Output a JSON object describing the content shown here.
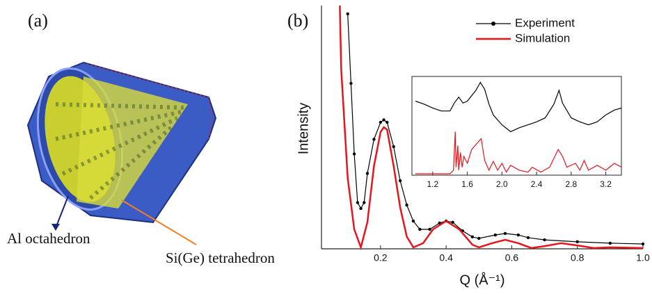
{
  "panel_a": {
    "label": "(a)",
    "annotations": [
      "Al octahedron",
      "Si(Ge) tetrahedron"
    ]
  },
  "chart_data": [
    {
      "type": "line",
      "panel_label": "(b)",
      "xlabel": "Q (Å⁻¹)",
      "ylabel": "Intensity",
      "xlim": [
        0.02,
        1.0
      ],
      "ylim": [
        0,
        100
      ],
      "xticks": [
        0.2,
        0.4,
        0.6,
        0.8,
        {
          "value": 1.0,
          "label": "1.0"
        }
      ],
      "legend": "upper right",
      "series": [
        {
          "name": "Experiment",
          "color": "#000000",
          "marker": "o",
          "x": [
            0.1,
            0.11,
            0.12,
            0.13,
            0.14,
            0.15,
            0.16,
            0.18,
            0.2,
            0.21,
            0.22,
            0.24,
            0.26,
            0.28,
            0.3,
            0.32,
            0.35,
            0.38,
            0.4,
            0.42,
            0.45,
            0.48,
            0.5,
            0.55,
            0.58,
            0.62,
            0.65,
            0.7,
            0.8,
            0.9,
            1.0
          ],
          "values": [
            96.6,
            68,
            39,
            19,
            16.6,
            19,
            31,
            45,
            52,
            53,
            52,
            42,
            28,
            18,
            11.4,
            8,
            8,
            10.6,
            11.4,
            10.9,
            7.4,
            4.9,
            4.3,
            5.7,
            6.3,
            5.7,
            4.6,
            3.7,
            2.9,
            2.3,
            2
          ]
        },
        {
          "name": "Simulation",
          "color": "#e8141b",
          "x": [
            0.076,
            0.08,
            0.1,
            0.12,
            0.14,
            0.16,
            0.18,
            0.2,
            0.21,
            0.22,
            0.24,
            0.26,
            0.28,
            0.3,
            0.33,
            0.36,
            0.4,
            0.44,
            0.48,
            0.5,
            0.54,
            0.58,
            0.62,
            0.66,
            0.7,
            0.75,
            0.8,
            0.85,
            0.9,
            1.0
          ],
          "values": [
            100,
            74,
            29,
            8,
            0.6,
            11,
            34,
            48,
            50,
            49,
            34,
            17,
            5,
            0.6,
            2.3,
            8,
            11.4,
            8,
            1.7,
            0.6,
            2.3,
            3.7,
            2.3,
            0.3,
            1.1,
            2.3,
            1.4,
            0.3,
            0.6,
            0.3
          ]
        }
      ]
    },
    {
      "type": "line",
      "inset": true,
      "xlim": [
        0.96,
        3.38
      ],
      "ylim": [
        0,
        100
      ],
      "xticks": [
        1.2,
        1.6,
        {
          "value": 2.0,
          "label": "2.0"
        },
        2.4,
        2.8,
        3.2
      ],
      "series": [
        {
          "name": "Experiment",
          "color": "#000000",
          "x": [
            1.0,
            1.1,
            1.2,
            1.3,
            1.4,
            1.45,
            1.5,
            1.55,
            1.6,
            1.7,
            1.75,
            1.8,
            1.85,
            1.9,
            2.0,
            2.1,
            2.2,
            2.3,
            2.4,
            2.5,
            2.6,
            2.66,
            2.7,
            2.8,
            2.9,
            3.0,
            3.1,
            3.2,
            3.3,
            3.38
          ],
          "values": [
            75,
            72,
            68,
            65,
            65,
            73,
            79,
            73,
            75,
            86,
            94,
            87,
            72,
            61,
            51,
            44,
            48,
            51,
            54,
            58,
            72,
            86,
            73,
            58,
            54,
            51,
            54,
            61,
            66,
            68
          ]
        },
        {
          "name": "Simulation",
          "color": "#e8141b",
          "x": [
            1.0,
            1.4,
            1.44,
            1.46,
            1.47,
            1.49,
            1.5,
            1.52,
            1.54,
            1.56,
            1.6,
            1.65,
            1.72,
            1.76,
            1.8,
            1.85,
            1.9,
            1.95,
            2.0,
            2.05,
            2.1,
            2.2,
            2.3,
            2.35,
            2.45,
            2.55,
            2.65,
            2.7,
            2.75,
            2.85,
            2.9,
            2.95,
            3.0,
            3.1,
            3.2,
            3.3,
            3.38
          ],
          "values": [
            1.4,
            1.4,
            5,
            44,
            8,
            30,
            5,
            23,
            8,
            19,
            12,
            26,
            33,
            37,
            15,
            5,
            14,
            5,
            12,
            3,
            10,
            5,
            3,
            8,
            3,
            8,
            26,
            19,
            8,
            12,
            5,
            15,
            5,
            10,
            5,
            12,
            8
          ]
        }
      ]
    }
  ]
}
